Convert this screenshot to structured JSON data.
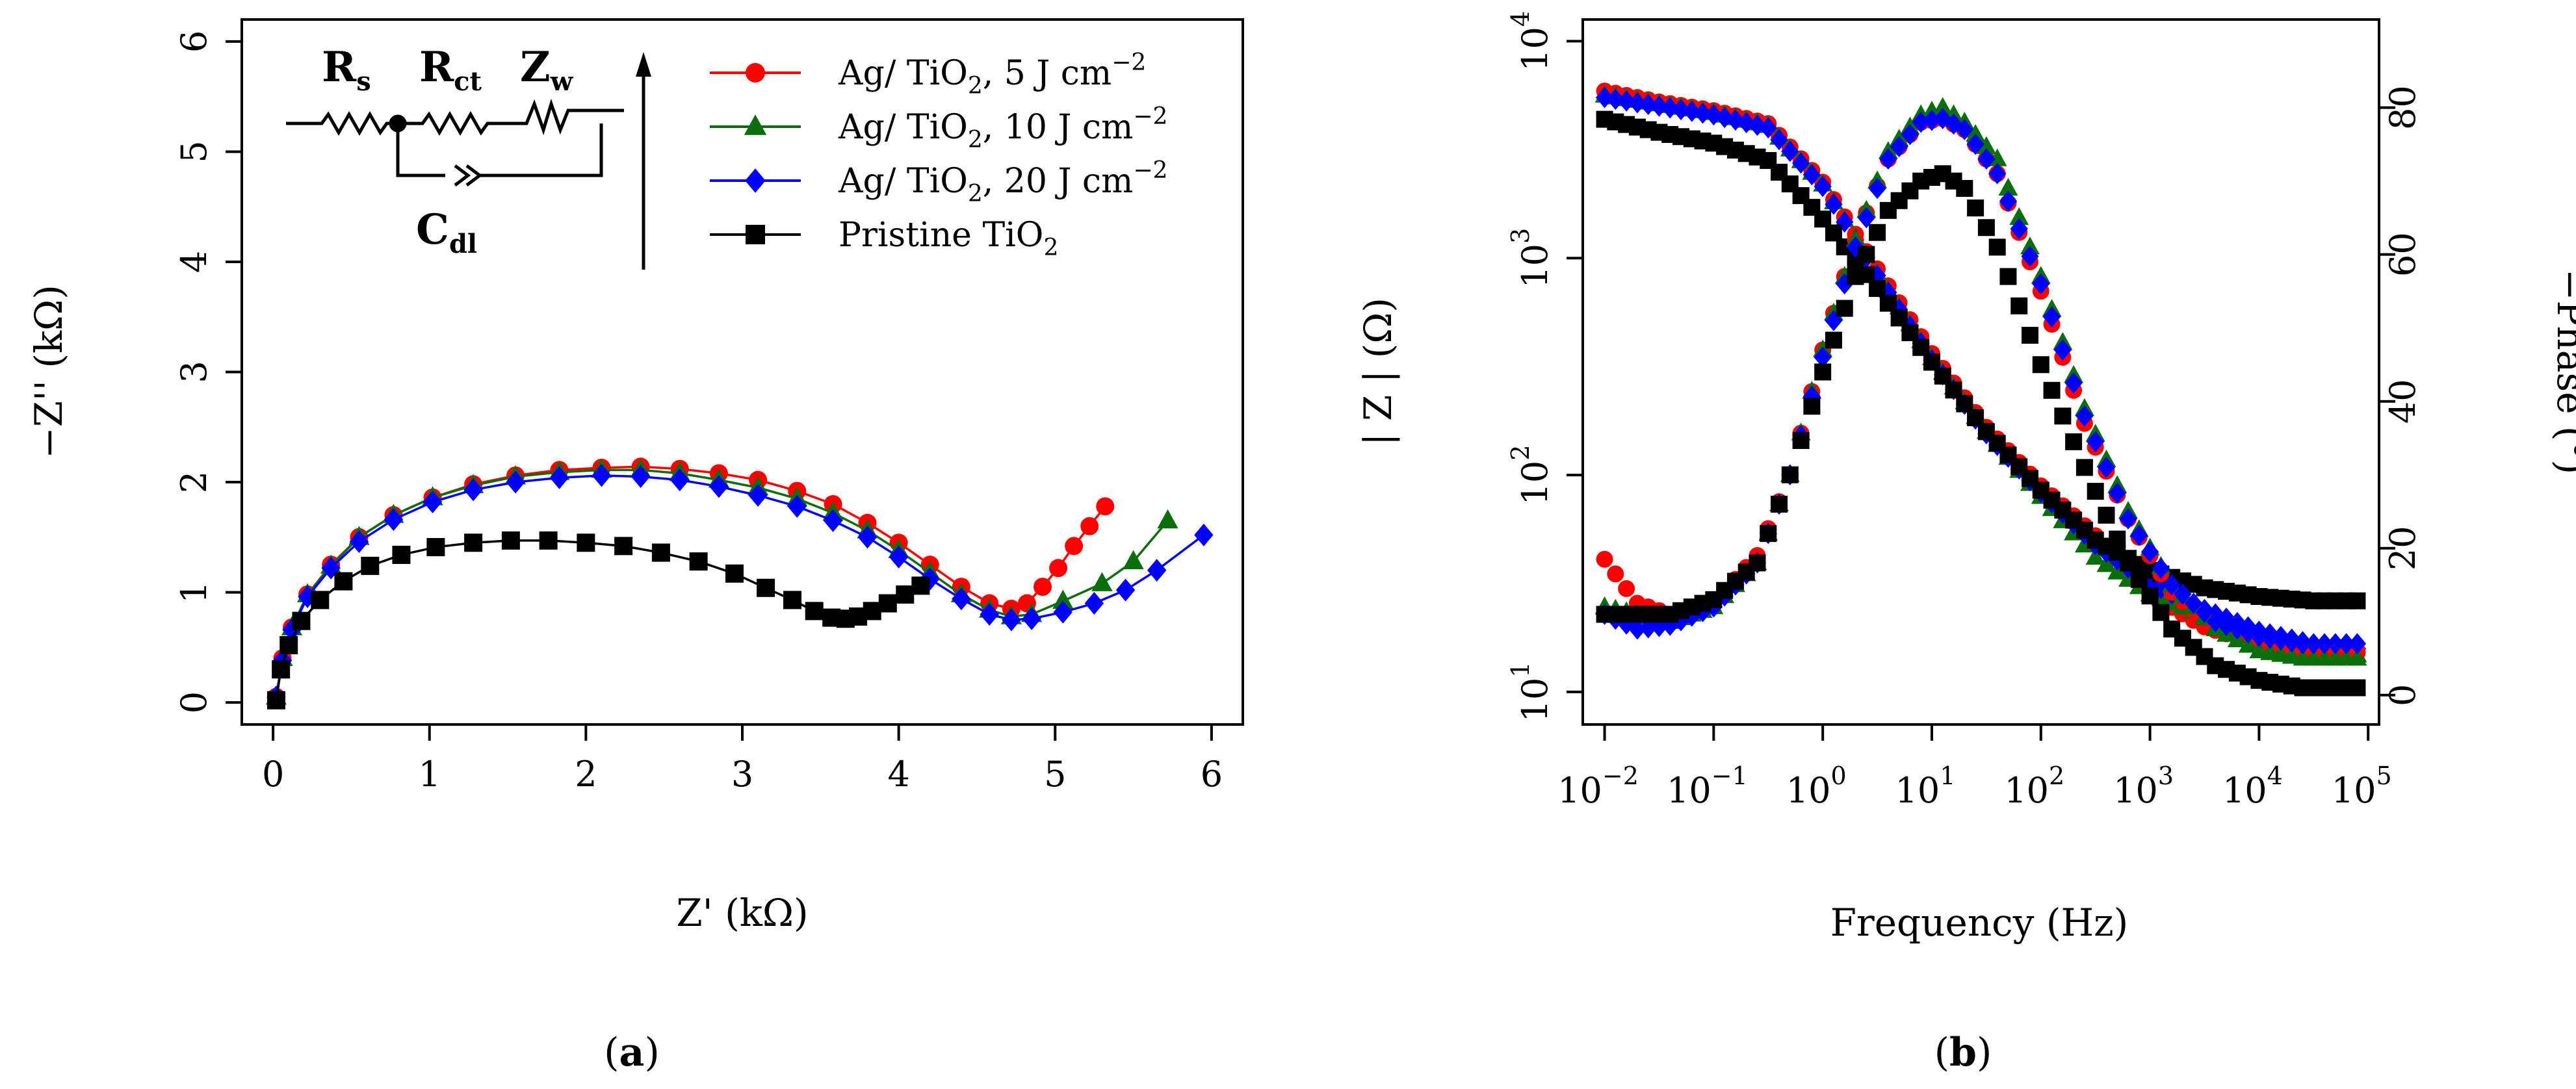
{
  "chart_data": [
    {
      "id": "a",
      "type": "scatter",
      "caption": "a",
      "xlabel": "Z' (kΩ)",
      "ylabel": "−Z'' (kΩ)",
      "xlim": [
        -0.2,
        6.2
      ],
      "ylim": [
        -0.2,
        6.2
      ],
      "xticks": [
        "0",
        "1",
        "2",
        "3",
        "4",
        "5",
        "6"
      ],
      "yticks": [
        "0",
        "1",
        "2",
        "3",
        "4",
        "5",
        "6"
      ],
      "circuit": {
        "rs": "R",
        "rs_sub": "s",
        "rct": "R",
        "rct_sub": "ct",
        "zw": "Z",
        "zw_sub": "w",
        "cdl": "C",
        "cdl_sub": "dl"
      },
      "series": [
        {
          "name": "Ag/ TiO2, 5 J cm−2",
          "label": "Ag/ TiO",
          "sub": "2",
          "rest": ", 5 J cm",
          "sup": "−2",
          "color": "#ff0000",
          "marker": "circle",
          "x": [
            0.02,
            0.06,
            0.12,
            0.22,
            0.37,
            0.55,
            0.77,
            1.02,
            1.28,
            1.55,
            1.83,
            2.1,
            2.35,
            2.6,
            2.85,
            3.1,
            3.35,
            3.58,
            3.8,
            4.0,
            4.2,
            4.4,
            4.58,
            4.72,
            4.82,
            4.92,
            5.02,
            5.12,
            5.22,
            5.32
          ],
          "y": [
            0.05,
            0.4,
            0.68,
            0.98,
            1.25,
            1.5,
            1.7,
            1.86,
            1.98,
            2.06,
            2.11,
            2.13,
            2.14,
            2.12,
            2.08,
            2.02,
            1.92,
            1.8,
            1.63,
            1.45,
            1.25,
            1.05,
            0.9,
            0.85,
            0.9,
            1.05,
            1.22,
            1.42,
            1.6,
            1.78
          ]
        },
        {
          "name": "Ag/ TiO2, 10 J cm−2",
          "label": "Ag/ TiO",
          "sub": "2",
          "rest": ", 10 J cm",
          "sup": "−2",
          "color": "#0a6e0a",
          "marker": "triangle",
          "x": [
            0.02,
            0.06,
            0.12,
            0.22,
            0.37,
            0.55,
            0.77,
            1.02,
            1.28,
            1.55,
            1.83,
            2.1,
            2.35,
            2.6,
            2.85,
            3.1,
            3.35,
            3.58,
            3.8,
            4.0,
            4.2,
            4.4,
            4.58,
            4.72,
            4.85,
            5.05,
            5.3,
            5.5,
            5.72
          ],
          "y": [
            0.05,
            0.4,
            0.68,
            0.98,
            1.24,
            1.5,
            1.7,
            1.86,
            1.97,
            2.05,
            2.09,
            2.11,
            2.11,
            2.08,
            2.02,
            1.95,
            1.85,
            1.72,
            1.56,
            1.38,
            1.18,
            0.98,
            0.84,
            0.78,
            0.8,
            0.92,
            1.08,
            1.28,
            1.65
          ]
        },
        {
          "name": "Ag/ TiO2, 20 J cm−2",
          "label": "Ag/ TiO",
          "sub": "2",
          "rest": ", 20 J cm",
          "sup": "−2",
          "color": "#0000ff",
          "marker": "diamond",
          "x": [
            0.02,
            0.06,
            0.12,
            0.22,
            0.37,
            0.55,
            0.77,
            1.02,
            1.28,
            1.55,
            1.83,
            2.1,
            2.35,
            2.6,
            2.85,
            3.1,
            3.35,
            3.58,
            3.8,
            4.0,
            4.2,
            4.4,
            4.58,
            4.72,
            4.85,
            5.05,
            5.25,
            5.45,
            5.65,
            5.95
          ],
          "y": [
            0.05,
            0.38,
            0.66,
            0.96,
            1.22,
            1.46,
            1.66,
            1.82,
            1.93,
            2.0,
            2.04,
            2.06,
            2.05,
            2.02,
            1.96,
            1.88,
            1.78,
            1.65,
            1.5,
            1.32,
            1.12,
            0.94,
            0.8,
            0.75,
            0.76,
            0.82,
            0.9,
            1.02,
            1.2,
            1.52
          ]
        },
        {
          "name": "Pristine TiO2",
          "label": "Pristine TiO",
          "sub": "2",
          "rest": "",
          "sup": "",
          "color": "#000000",
          "marker": "square",
          "x": [
            0.02,
            0.05,
            0.1,
            0.18,
            0.3,
            0.45,
            0.62,
            0.82,
            1.04,
            1.28,
            1.52,
            1.76,
            2.0,
            2.24,
            2.48,
            2.72,
            2.95,
            3.15,
            3.32,
            3.46,
            3.57,
            3.66,
            3.74,
            3.83,
            3.93,
            4.04,
            4.14
          ],
          "y": [
            0.02,
            0.3,
            0.52,
            0.74,
            0.93,
            1.1,
            1.24,
            1.34,
            1.41,
            1.45,
            1.47,
            1.47,
            1.45,
            1.42,
            1.36,
            1.28,
            1.17,
            1.04,
            0.93,
            0.83,
            0.77,
            0.76,
            0.78,
            0.83,
            0.9,
            0.98,
            1.06
          ]
        }
      ]
    },
    {
      "id": "b",
      "type": "scatter",
      "caption": "b",
      "xlabel": "Frequency (Hz)",
      "ylabel_left": "| Z | (Ω)",
      "ylabel_right": "−Phase (°)",
      "x_scale": "log10",
      "xlim_log": [
        -2.2,
        5.1
      ],
      "ylim_left_log": [
        0.85,
        4.1
      ],
      "ylim_right": [
        -4,
        92
      ],
      "xtick_exponents": [
        "−2",
        "−1",
        "0",
        "1",
        "2",
        "3",
        "4",
        "5"
      ],
      "ytick_left_exponents": [
        "1",
        "2",
        "3",
        "4"
      ],
      "yticks_right": [
        "0",
        "20",
        "40",
        "60",
        "80"
      ],
      "magnitude_series": [
        {
          "name": "Ag/ TiO2, 5 J cm−2",
          "color": "#ff0000",
          "marker": "circle",
          "logx": [
            -2,
            -1.5,
            -1,
            -0.5,
            0,
            0.5,
            1,
            1.5,
            2,
            2.5,
            3,
            3.5,
            4,
            4.5,
            4.9
          ],
          "logz": [
            3.77,
            3.72,
            3.68,
            3.62,
            3.35,
            2.95,
            2.56,
            2.22,
            1.95,
            1.72,
            1.45,
            1.3,
            1.22,
            1.18,
            1.18
          ]
        },
        {
          "name": "Ag/ TiO2, 10 J cm−2",
          "color": "#0a6e0a",
          "marker": "triangle",
          "logx": [
            -2,
            -1.5,
            -1,
            -0.5,
            0,
            0.5,
            1,
            1.5,
            2,
            2.5,
            3,
            3.5,
            4,
            4.5,
            4.9
          ],
          "logz": [
            3.75,
            3.71,
            3.67,
            3.61,
            3.34,
            2.93,
            2.54,
            2.2,
            1.9,
            1.62,
            1.45,
            1.35,
            1.27,
            1.2,
            1.17
          ]
        },
        {
          "name": "Ag/ TiO2, 20 J cm−2",
          "color": "#0000ff",
          "marker": "diamond",
          "logx": [
            -2,
            -1.5,
            -1,
            -0.5,
            0,
            0.5,
            1,
            1.5,
            2,
            2.5,
            3,
            3.5,
            4,
            4.5,
            4.9
          ],
          "logz": [
            3.74,
            3.7,
            3.66,
            3.6,
            3.33,
            2.92,
            2.53,
            2.19,
            1.92,
            1.68,
            1.5,
            1.38,
            1.28,
            1.22,
            1.2
          ]
        },
        {
          "name": "Pristine TiO2",
          "color": "#000000",
          "marker": "square",
          "logx": [
            -2,
            -1.5,
            -1,
            -0.5,
            0,
            0.5,
            1,
            1.5,
            2,
            2.5,
            3,
            3.5,
            4,
            4.5,
            4.9
          ],
          "logz": [
            3.64,
            3.58,
            3.53,
            3.45,
            3.18,
            2.86,
            2.52,
            2.2,
            1.93,
            1.7,
            1.56,
            1.48,
            1.44,
            1.42,
            1.42
          ]
        }
      ],
      "phase_series": [
        {
          "name": "Ag/ TiO2, 5 J cm−2",
          "color": "#ff0000",
          "marker": "circle",
          "logx": [
            -2,
            -1.7,
            -1.4,
            -1,
            -0.6,
            -0.3,
            0,
            0.3,
            0.6,
            0.9,
            1.1,
            1.3,
            1.6,
            2,
            2.4,
            2.8,
            3.2,
            3.6,
            4,
            4.4,
            4.9
          ],
          "phase": [
            18.5,
            12.5,
            11,
            12.5,
            19,
            30,
            47,
            62,
            73,
            78,
            78.5,
            77,
            71,
            55,
            37,
            24,
            14,
            9,
            7,
            6,
            6
          ]
        },
        {
          "name": "Ag/ TiO2, 10 J cm−2",
          "color": "#0a6e0a",
          "marker": "triangle",
          "logx": [
            -2,
            -1.7,
            -1.4,
            -1,
            -0.6,
            -0.3,
            0,
            0.3,
            0.6,
            0.9,
            1.1,
            1.3,
            1.6,
            2,
            2.4,
            2.8,
            3.2,
            3.6,
            4,
            4.4,
            4.9
          ],
          "phase": [
            12,
            11,
            10,
            12,
            18,
            30,
            47,
            62,
            74,
            79,
            80,
            78,
            73,
            57,
            39,
            25,
            15,
            9,
            6,
            5,
            5
          ]
        },
        {
          "name": "Ag/ TiO2, 20 J cm−2",
          "color": "#0000ff",
          "marker": "diamond",
          "logx": [
            -2,
            -1.7,
            -1.4,
            -1,
            -0.6,
            -0.3,
            0,
            0.3,
            0.6,
            0.9,
            1.1,
            1.3,
            1.6,
            2,
            2.4,
            2.8,
            3.2,
            3.6,
            4,
            4.4,
            4.9
          ],
          "phase": [
            11,
            9,
            9.5,
            12,
            18,
            30,
            46,
            61,
            73,
            78,
            78.5,
            77,
            71,
            56,
            38,
            24,
            15,
            10,
            8,
            7,
            7
          ]
        },
        {
          "name": "Pristine TiO2",
          "color": "#000000",
          "marker": "square",
          "logx": [
            -2,
            -1.7,
            -1.4,
            -1,
            -0.6,
            -0.3,
            0,
            0.3,
            0.6,
            0.9,
            1.1,
            1.3,
            1.6,
            2,
            2.4,
            2.8,
            3.2,
            3.6,
            4,
            4.4,
            4.9
          ],
          "phase": [
            11,
            11,
            11,
            13,
            18,
            30,
            44,
            57,
            66,
            70,
            71,
            69,
            61,
            45,
            31,
            18,
            9,
            4,
            2,
            1,
            1
          ]
        }
      ]
    }
  ]
}
